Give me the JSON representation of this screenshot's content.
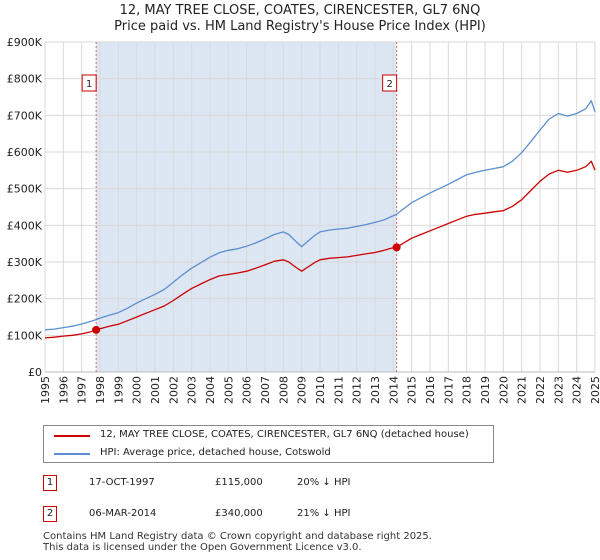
{
  "title_line1": "12, MAY TREE CLOSE, COATES, CIRENCESTER, GL7 6NQ",
  "title_line2": "Price paid vs. HM Land Registry's House Price Index (HPI)",
  "chart_data": {
    "type": "line",
    "title": "12, MAY TREE CLOSE, COATES, CIRENCESTER, GL7 6NQ — Price paid vs. HM Land Registry's House Price Index (HPI)",
    "xlabel": "",
    "ylabel": "",
    "xlim": [
      1995,
      2025
    ],
    "ylim": [
      0,
      900000
    ],
    "grid": true,
    "x_ticks": [
      "1995",
      "1996",
      "1997",
      "1998",
      "1999",
      "2000",
      "2001",
      "2002",
      "2003",
      "2004",
      "2005",
      "2006",
      "2007",
      "2008",
      "2009",
      "2010",
      "2011",
      "2012",
      "2013",
      "2014",
      "2015",
      "2016",
      "2017",
      "2018",
      "2019",
      "2020",
      "2021",
      "2022",
      "2023",
      "2024",
      "2025"
    ],
    "y_ticks": [
      {
        "value": 0,
        "label": "£0"
      },
      {
        "value": 100000,
        "label": "£100K"
      },
      {
        "value": 200000,
        "label": "£200K"
      },
      {
        "value": 300000,
        "label": "£300K"
      },
      {
        "value": 400000,
        "label": "£400K"
      },
      {
        "value": 500000,
        "label": "£500K"
      },
      {
        "value": 600000,
        "label": "£600K"
      },
      {
        "value": 700000,
        "label": "£700K"
      },
      {
        "value": 800000,
        "label": "£800K"
      },
      {
        "value": 900000,
        "label": "£900K"
      }
    ],
    "series": [
      {
        "name": "12, MAY TREE CLOSE, COATES, CIRENCESTER, GL7 6NQ (detached house)",
        "color": "#cc0000",
        "points": [
          [
            1995.0,
            93000
          ],
          [
            1995.5,
            95000
          ],
          [
            1996.0,
            98000
          ],
          [
            1996.5,
            100000
          ],
          [
            1997.0,
            104000
          ],
          [
            1997.5,
            110000
          ],
          [
            1997.79,
            115000
          ],
          [
            1998.0,
            118000
          ],
          [
            1998.5,
            125000
          ],
          [
            1999.0,
            130000
          ],
          [
            1999.5,
            140000
          ],
          [
            2000.0,
            150000
          ],
          [
            2000.5,
            160000
          ],
          [
            2001.0,
            170000
          ],
          [
            2001.5,
            180000
          ],
          [
            2002.0,
            195000
          ],
          [
            2002.5,
            212000
          ],
          [
            2003.0,
            228000
          ],
          [
            2003.5,
            240000
          ],
          [
            2004.0,
            252000
          ],
          [
            2004.5,
            262000
          ],
          [
            2005.0,
            266000
          ],
          [
            2005.5,
            270000
          ],
          [
            2006.0,
            275000
          ],
          [
            2006.5,
            283000
          ],
          [
            2007.0,
            292000
          ],
          [
            2007.5,
            302000
          ],
          [
            2008.0,
            306000
          ],
          [
            2008.3,
            300000
          ],
          [
            2008.7,
            285000
          ],
          [
            2009.0,
            275000
          ],
          [
            2009.3,
            285000
          ],
          [
            2009.7,
            298000
          ],
          [
            2010.0,
            306000
          ],
          [
            2010.5,
            310000
          ],
          [
            2011.0,
            312000
          ],
          [
            2011.5,
            314000
          ],
          [
            2012.0,
            318000
          ],
          [
            2012.5,
            322000
          ],
          [
            2013.0,
            326000
          ],
          [
            2013.5,
            332000
          ],
          [
            2013.9,
            338000
          ],
          [
            2014.18,
            340000
          ],
          [
            2014.5,
            350000
          ],
          [
            2015.0,
            365000
          ],
          [
            2015.5,
            375000
          ],
          [
            2016.0,
            385000
          ],
          [
            2016.5,
            395000
          ],
          [
            2017.0,
            405000
          ],
          [
            2017.5,
            415000
          ],
          [
            2018.0,
            425000
          ],
          [
            2018.5,
            430000
          ],
          [
            2019.0,
            433000
          ],
          [
            2019.5,
            437000
          ],
          [
            2020.0,
            440000
          ],
          [
            2020.5,
            452000
          ],
          [
            2021.0,
            470000
          ],
          [
            2021.5,
            495000
          ],
          [
            2022.0,
            520000
          ],
          [
            2022.5,
            540000
          ],
          [
            2023.0,
            550000
          ],
          [
            2023.5,
            545000
          ],
          [
            2024.0,
            550000
          ],
          [
            2024.5,
            560000
          ],
          [
            2024.8,
            575000
          ],
          [
            2025.0,
            550000
          ]
        ]
      },
      {
        "name": "HPI: Average price, detached house, Cotswold",
        "color": "#5b8fd0",
        "points": [
          [
            1995.0,
            115000
          ],
          [
            1995.5,
            117000
          ],
          [
            1996.0,
            121000
          ],
          [
            1996.5,
            125000
          ],
          [
            1997.0,
            131000
          ],
          [
            1997.5,
            138000
          ],
          [
            1997.79,
            143000
          ],
          [
            1998.0,
            147000
          ],
          [
            1998.5,
            155000
          ],
          [
            1999.0,
            162000
          ],
          [
            1999.5,
            174000
          ],
          [
            2000.0,
            188000
          ],
          [
            2000.5,
            200000
          ],
          [
            2001.0,
            212000
          ],
          [
            2001.5,
            225000
          ],
          [
            2002.0,
            245000
          ],
          [
            2002.5,
            265000
          ],
          [
            2003.0,
            283000
          ],
          [
            2003.5,
            298000
          ],
          [
            2004.0,
            313000
          ],
          [
            2004.5,
            325000
          ],
          [
            2005.0,
            332000
          ],
          [
            2005.5,
            336000
          ],
          [
            2006.0,
            343000
          ],
          [
            2006.5,
            352000
          ],
          [
            2007.0,
            363000
          ],
          [
            2007.5,
            375000
          ],
          [
            2008.0,
            382000
          ],
          [
            2008.3,
            375000
          ],
          [
            2008.7,
            355000
          ],
          [
            2009.0,
            342000
          ],
          [
            2009.3,
            355000
          ],
          [
            2009.7,
            372000
          ],
          [
            2010.0,
            382000
          ],
          [
            2010.5,
            387000
          ],
          [
            2011.0,
            390000
          ],
          [
            2011.5,
            392000
          ],
          [
            2012.0,
            397000
          ],
          [
            2012.5,
            402000
          ],
          [
            2013.0,
            408000
          ],
          [
            2013.5,
            415000
          ],
          [
            2013.9,
            424000
          ],
          [
            2014.18,
            430000
          ],
          [
            2014.5,
            443000
          ],
          [
            2015.0,
            462000
          ],
          [
            2015.5,
            475000
          ],
          [
            2016.0,
            488000
          ],
          [
            2016.5,
            500000
          ],
          [
            2017.0,
            512000
          ],
          [
            2017.5,
            525000
          ],
          [
            2018.0,
            538000
          ],
          [
            2018.5,
            545000
          ],
          [
            2019.0,
            550000
          ],
          [
            2019.5,
            555000
          ],
          [
            2020.0,
            560000
          ],
          [
            2020.5,
            575000
          ],
          [
            2021.0,
            598000
          ],
          [
            2021.5,
            628000
          ],
          [
            2022.0,
            660000
          ],
          [
            2022.5,
            690000
          ],
          [
            2023.0,
            705000
          ],
          [
            2023.5,
            698000
          ],
          [
            2024.0,
            705000
          ],
          [
            2024.5,
            718000
          ],
          [
            2024.8,
            740000
          ],
          [
            2025.0,
            710000
          ]
        ]
      }
    ],
    "markers": [
      {
        "label": "1",
        "x": 1997.79,
        "value": 115000
      },
      {
        "label": "2",
        "x": 2014.18,
        "value": 340000
      }
    ]
  },
  "legend": {
    "items": [
      {
        "label": "12, MAY TREE CLOSE, COATES, CIRENCESTER, GL7 6NQ (detached house)",
        "color": "#cc0000"
      },
      {
        "label": "HPI: Average price, detached house, Cotswold",
        "color": "#5b8fd0"
      }
    ]
  },
  "sales": [
    {
      "num": "1",
      "date": "17-OCT-1997",
      "price": "£115,000",
      "hpi": "20% ↓ HPI"
    },
    {
      "num": "2",
      "date": "06-MAR-2014",
      "price": "£340,000",
      "hpi": "21% ↓ HPI"
    }
  ],
  "footer": {
    "line1": "Contains HM Land Registry data © Crown copyright and database right 2025.",
    "line2": "This data is licensed under the Open Government Licence v3.0."
  },
  "colors": {
    "price": "#cc0000",
    "hpi": "#5b8fd0",
    "shade": "#dde6f3",
    "marker_line": "#e06666"
  }
}
